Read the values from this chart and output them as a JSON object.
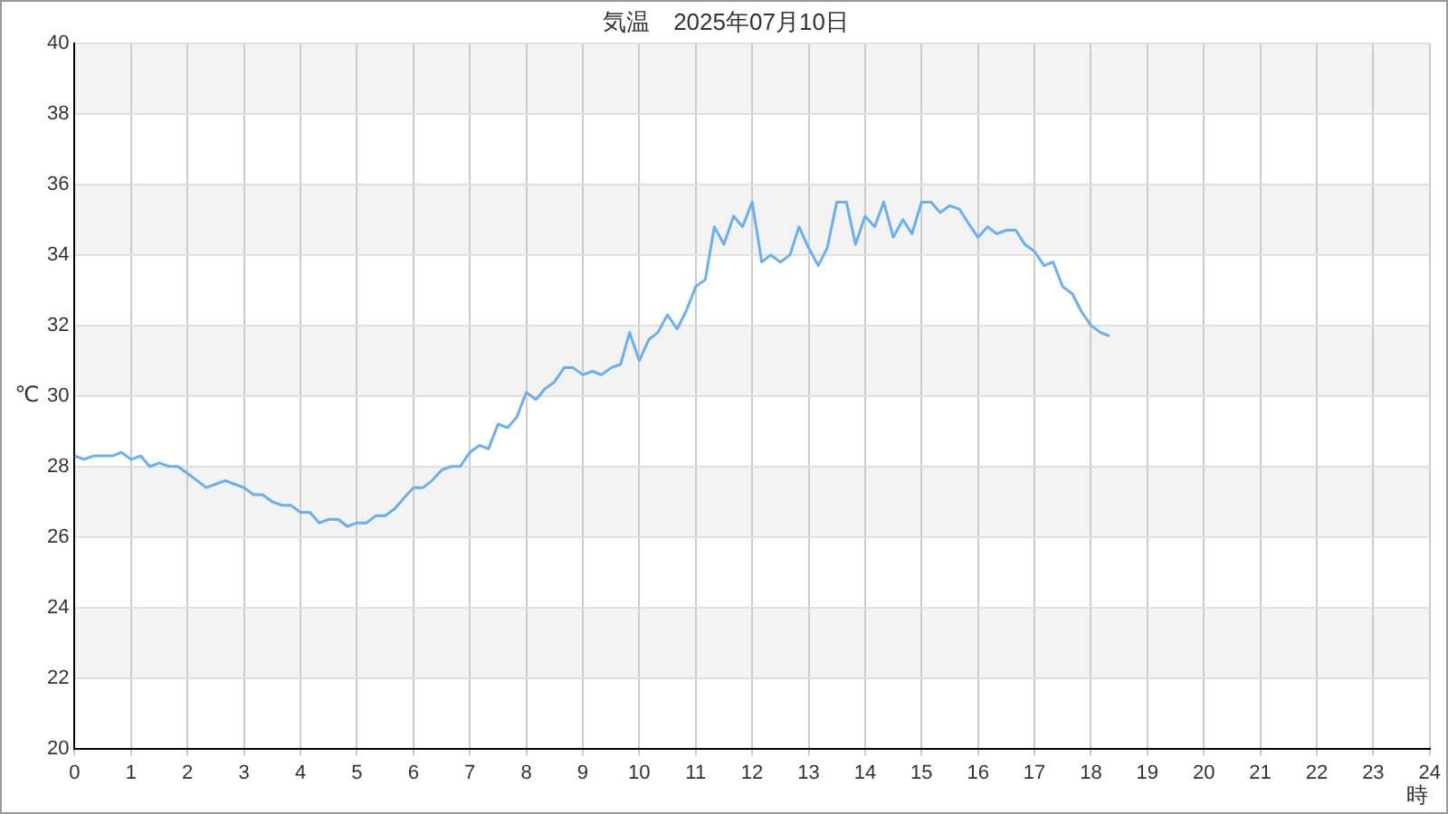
{
  "chart_data": {
    "type": "line",
    "title": "気温　2025年07月10日",
    "xlabel": "時",
    "ylabel": "℃",
    "x": [
      0,
      0.17,
      0.33,
      0.5,
      0.67,
      0.83,
      1,
      1.17,
      1.33,
      1.5,
      1.67,
      1.83,
      2,
      2.17,
      2.33,
      2.5,
      2.67,
      2.83,
      3,
      3.17,
      3.33,
      3.5,
      3.67,
      3.83,
      4,
      4.17,
      4.33,
      4.5,
      4.67,
      4.83,
      5,
      5.17,
      5.33,
      5.5,
      5.67,
      5.83,
      6,
      6.17,
      6.33,
      6.5,
      6.67,
      6.83,
      7,
      7.17,
      7.33,
      7.5,
      7.67,
      7.83,
      8,
      8.17,
      8.33,
      8.5,
      8.67,
      8.83,
      9,
      9.17,
      9.33,
      9.5,
      9.67,
      9.83,
      10,
      10.17,
      10.33,
      10.5,
      10.67,
      10.83,
      11,
      11.17,
      11.33,
      11.5,
      11.67,
      11.83,
      12,
      12.17,
      12.33,
      12.5,
      12.67,
      12.83,
      13,
      13.17,
      13.33,
      13.5,
      13.67,
      13.83,
      14,
      14.17,
      14.33,
      14.5,
      14.67,
      14.83,
      15,
      15.17,
      15.33,
      15.5,
      15.67,
      15.83,
      16,
      16.17,
      16.33,
      16.5,
      16.67,
      16.83,
      17,
      17.17,
      17.33,
      17.5,
      17.67,
      17.83,
      18,
      18.17,
      18.33
    ],
    "series": [
      {
        "color": "#6aaff0",
        "values": [
          28.3,
          28.2,
          28.3,
          28.3,
          28.3,
          28.4,
          28.2,
          28.3,
          28.0,
          28.1,
          28.0,
          28.0,
          27.8,
          27.6,
          27.4,
          27.5,
          27.6,
          27.5,
          27.4,
          27.2,
          27.2,
          27.0,
          26.9,
          26.9,
          26.7,
          26.7,
          26.4,
          26.5,
          26.5,
          26.3,
          26.4,
          26.4,
          26.6,
          26.6,
          26.8,
          27.1,
          27.4,
          27.4,
          27.6,
          27.9,
          28.0,
          28.0,
          28.4,
          28.6,
          28.5,
          29.2,
          29.1,
          29.4,
          30.1,
          29.9,
          30.2,
          30.4,
          30.8,
          30.8,
          30.6,
          30.7,
          30.6,
          30.8,
          30.9,
          31.8,
          31.0,
          31.6,
          31.8,
          32.3,
          31.9,
          32.4,
          33.1,
          33.3,
          34.8,
          34.3,
          35.1,
          34.8,
          35.5,
          33.8,
          34.0,
          33.8,
          34.0,
          34.8,
          34.2,
          33.7,
          34.2,
          35.5,
          35.5,
          34.3,
          35.1,
          34.8,
          35.5,
          34.5,
          35.0,
          34.6,
          35.5,
          35.5,
          35.2,
          35.4,
          35.3,
          34.9,
          34.5,
          34.8,
          34.6,
          34.7,
          34.7,
          34.3,
          34.1,
          33.7,
          33.8,
          33.1,
          32.9,
          32.4,
          32.0,
          31.8,
          31.7
        ]
      }
    ],
    "xlim": [
      0,
      24
    ],
    "xticks": [
      0,
      1,
      2,
      3,
      4,
      5,
      6,
      7,
      8,
      9,
      10,
      11,
      12,
      13,
      14,
      15,
      16,
      17,
      18,
      19,
      20,
      21,
      22,
      23,
      24
    ],
    "ylim": [
      20,
      40
    ],
    "yticks": [
      20,
      22,
      24,
      26,
      28,
      30,
      32,
      34,
      36,
      38,
      40
    ],
    "grid": true,
    "legend": false,
    "marker": "none",
    "line_style": "solid"
  }
}
